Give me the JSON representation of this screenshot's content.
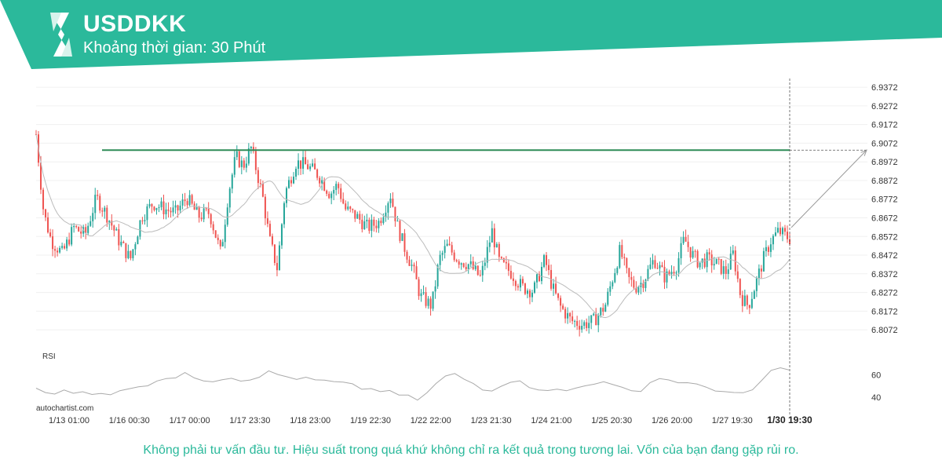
{
  "header": {
    "symbol": "USDDKK",
    "interval": "Khoảng thời gian: 30 Phút"
  },
  "footer": {
    "disclaimer": "Không phải tư vấn đầu tư. Hiệu suất trong quá khứ không chỉ ra kết quả trong tương lai. Vốn của bạn đang gặp rủi ro.",
    "brand": "autochartist.com"
  },
  "colors": {
    "brand": "#2bb99b",
    "bull": "#26a69a",
    "bear": "#ef5350",
    "level": "#2e8b57",
    "ma": "#bbbbbb"
  },
  "chart_data": [
    {
      "type": "candlestick",
      "title": "",
      "y_ticks": [
        "6.9372",
        "6.9272",
        "6.9172",
        "6.9072",
        "6.8972",
        "6.8872",
        "6.8772",
        "6.8672",
        "6.8572",
        "6.8472",
        "6.8372",
        "6.8272",
        "6.8172",
        "6.8072"
      ],
      "ylim": [
        6.8022,
        6.9402
      ],
      "x_ticks": [
        "1/13 01:00",
        "1/16 00:30",
        "1/17 00:00",
        "1/17 23:30",
        "1/18 23:00",
        "1/19 22:30",
        "1/22 22:00",
        "1/23 21:30",
        "1/24 21:00",
        "1/25 20:30",
        "1/26 20:00",
        "1/27 19:30",
        "1/30 19:30"
      ],
      "highlight_x_tick": "1/30 19:30",
      "resistance_level": 6.9035,
      "projection": {
        "from": 6.862,
        "to": 6.9035
      },
      "close_path": [
        [
          0,
          6.912
        ],
        [
          0.01,
          6.87
        ],
        [
          0.02,
          6.855
        ],
        [
          0.035,
          6.848
        ],
        [
          0.05,
          6.862
        ],
        [
          0.065,
          6.858
        ],
        [
          0.08,
          6.878
        ],
        [
          0.095,
          6.868
        ],
        [
          0.11,
          6.855
        ],
        [
          0.125,
          6.845
        ],
        [
          0.14,
          6.868
        ],
        [
          0.155,
          6.875
        ],
        [
          0.17,
          6.872
        ],
        [
          0.185,
          6.87
        ],
        [
          0.2,
          6.878
        ],
        [
          0.215,
          6.868
        ],
        [
          0.23,
          6.87
        ],
        [
          0.245,
          6.848
        ],
        [
          0.255,
          6.88
        ],
        [
          0.265,
          6.9
        ],
        [
          0.275,
          6.895
        ],
        [
          0.285,
          6.905
        ],
        [
          0.3,
          6.88
        ],
        [
          0.31,
          6.855
        ],
        [
          0.32,
          6.84
        ],
        [
          0.33,
          6.88
        ],
        [
          0.345,
          6.897
        ],
        [
          0.36,
          6.895
        ],
        [
          0.375,
          6.89
        ],
        [
          0.39,
          6.88
        ],
        [
          0.4,
          6.885
        ],
        [
          0.41,
          6.872
        ],
        [
          0.425,
          6.868
        ],
        [
          0.44,
          6.862
        ],
        [
          0.455,
          6.865
        ],
        [
          0.47,
          6.88
        ],
        [
          0.48,
          6.862
        ],
        [
          0.49,
          6.85
        ],
        [
          0.5,
          6.84
        ],
        [
          0.51,
          6.825
        ],
        [
          0.525,
          6.82
        ],
        [
          0.535,
          6.845
        ],
        [
          0.545,
          6.852
        ],
        [
          0.56,
          6.845
        ],
        [
          0.575,
          6.842
        ],
        [
          0.59,
          6.835
        ],
        [
          0.605,
          6.86
        ],
        [
          0.615,
          6.843
        ],
        [
          0.63,
          6.838
        ],
        [
          0.645,
          6.83
        ],
        [
          0.66,
          6.828
        ],
        [
          0.675,
          6.845
        ],
        [
          0.685,
          6.83
        ],
        [
          0.695,
          6.82
        ],
        [
          0.71,
          6.812
        ],
        [
          0.725,
          6.81
        ],
        [
          0.74,
          6.812
        ],
        [
          0.755,
          6.82
        ],
        [
          0.765,
          6.835
        ],
        [
          0.775,
          6.85
        ],
        [
          0.785,
          6.835
        ],
        [
          0.795,
          6.83
        ],
        [
          0.805,
          6.833
        ],
        [
          0.82,
          6.845
        ],
        [
          0.835,
          6.835
        ],
        [
          0.85,
          6.842
        ],
        [
          0.86,
          6.856
        ],
        [
          0.87,
          6.848
        ],
        [
          0.88,
          6.843
        ],
        [
          0.89,
          6.845
        ],
        [
          0.905,
          6.842
        ],
        [
          0.915,
          6.838
        ],
        [
          0.925,
          6.848
        ],
        [
          0.935,
          6.825
        ],
        [
          0.945,
          6.82
        ],
        [
          0.955,
          6.832
        ],
        [
          0.965,
          6.845
        ],
        [
          0.975,
          6.855
        ],
        [
          0.985,
          6.86
        ],
        [
          1.0,
          6.856
        ]
      ]
    },
    {
      "type": "line",
      "title": "RSI",
      "y_ticks": [
        "60",
        "40"
      ],
      "ylim": [
        35,
        70
      ],
      "values": [
        48,
        46,
        44,
        45,
        43,
        44,
        42,
        45,
        43,
        47,
        46,
        50,
        52,
        55,
        58,
        57,
        60,
        58,
        56,
        55,
        57,
        58,
        55,
        57,
        59,
        62,
        60,
        58,
        57,
        56,
        55,
        54,
        53,
        52,
        50,
        48,
        47,
        46,
        44,
        42,
        40,
        38,
        43,
        52,
        58,
        60,
        56,
        52,
        48,
        47,
        51,
        55,
        53,
        50,
        48,
        47,
        46,
        45,
        48,
        50,
        53,
        55,
        50,
        47,
        45,
        47,
        53,
        57,
        55,
        54,
        52,
        50,
        49,
        47,
        45,
        43,
        42,
        46,
        55,
        63,
        65,
        66
      ]
    }
  ]
}
